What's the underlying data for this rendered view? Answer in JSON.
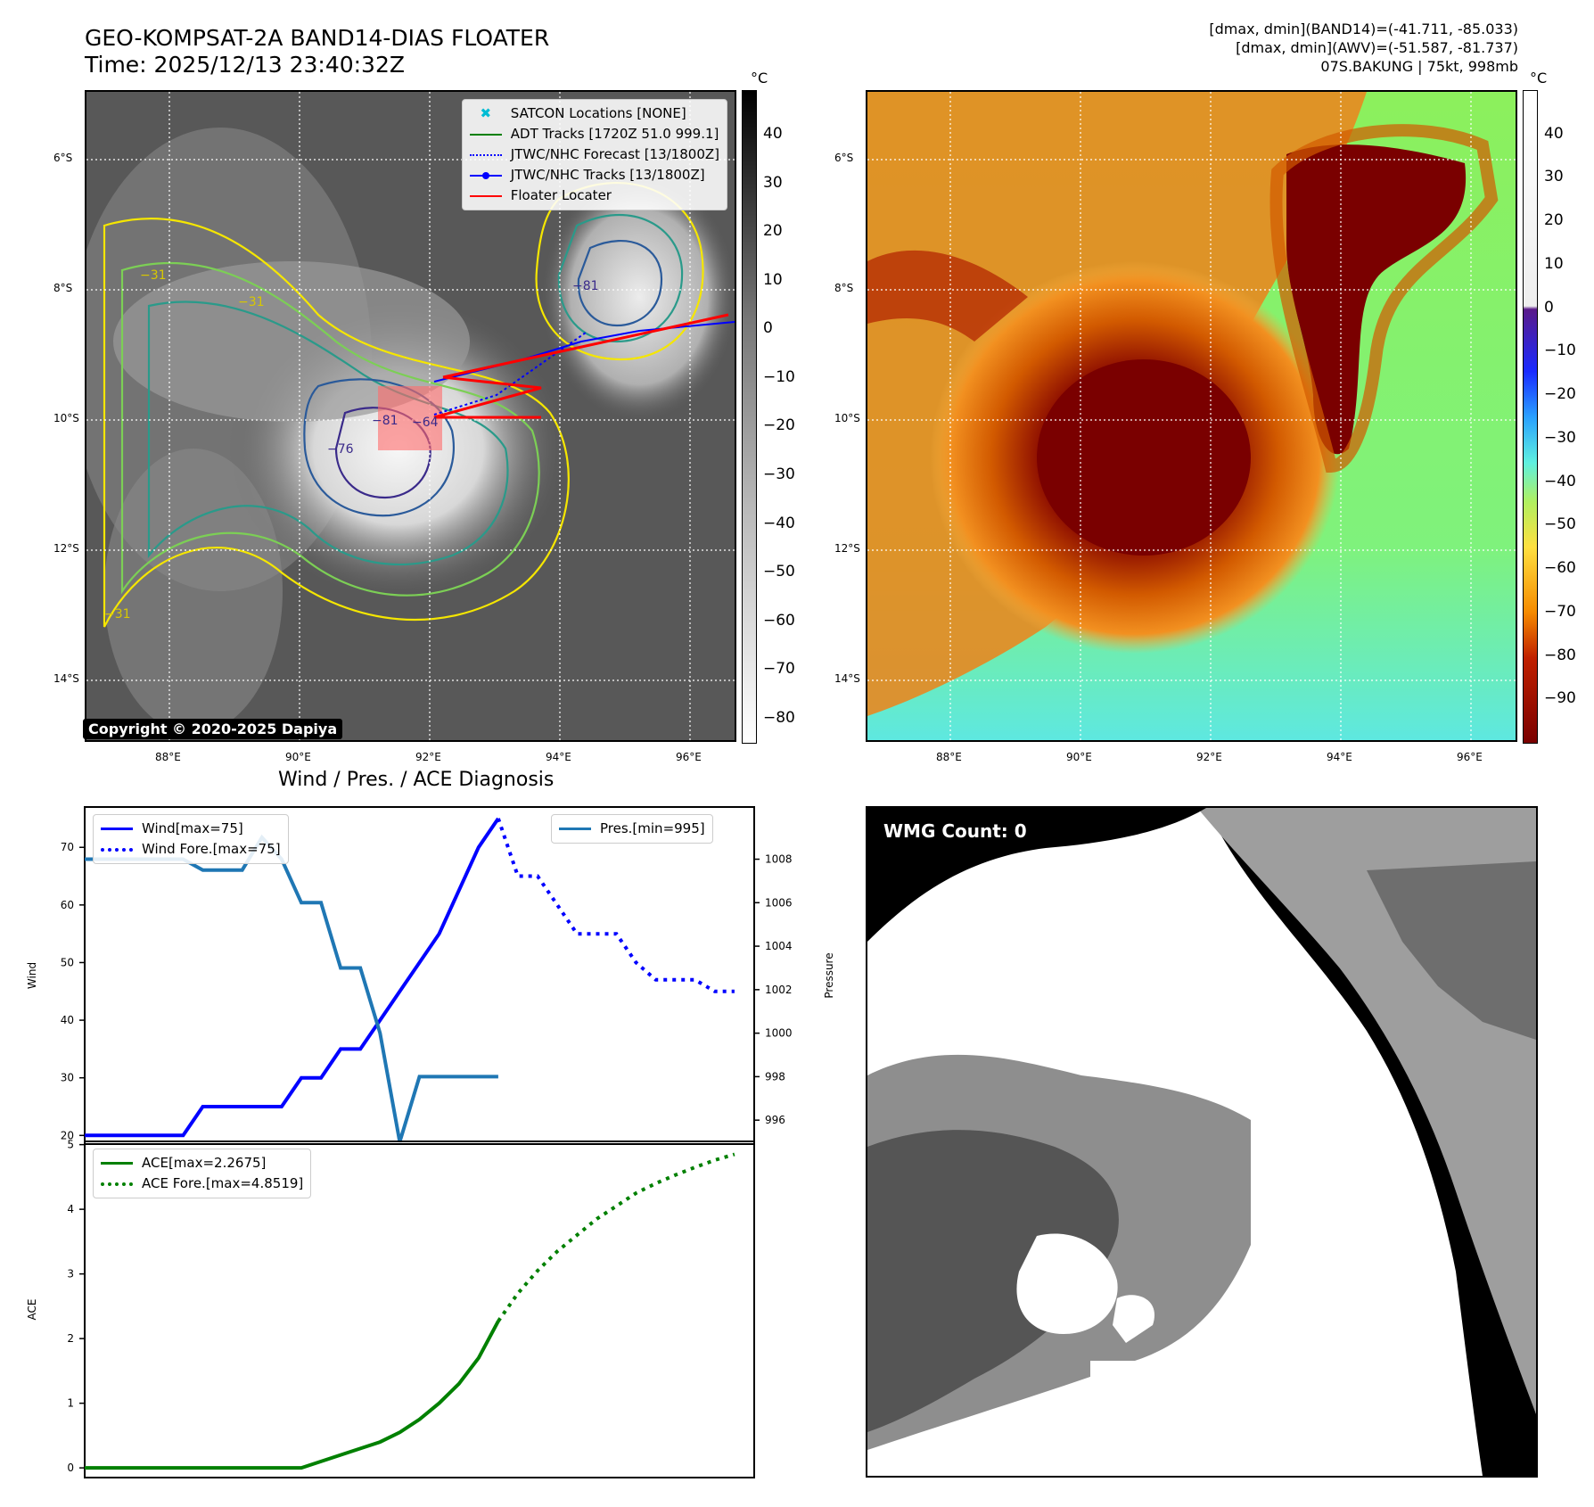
{
  "header": {
    "title_line1": "GEO-KOMPSAT-2A BAND14-DIAS FLOATER",
    "title_line2": "Time: 2025/12/13 23:40:32Z",
    "dmax_band14": "[dmax, dmin](BAND14)=(-41.711, -85.033)",
    "dmax_awv": "[dmax, dmin](AWV)=(-51.587, -81.737)",
    "storm_info": "07S.BAKUNG | 75kt, 998mb"
  },
  "map": {
    "lat_labels": [
      "6°S",
      "8°S",
      "10°S",
      "12°S",
      "14°S"
    ],
    "lon_labels": [
      "88°E",
      "90°E",
      "92°E",
      "94°E",
      "96°E"
    ],
    "unit": "°C",
    "contour_labels": [
      "−31",
      "−31",
      "−31",
      "−81",
      "−76",
      "−81",
      "−64"
    ],
    "copyright": "Copyright © 2020-2025 Dapiya",
    "legend": [
      {
        "label": "SATCON Locations [NONE]",
        "color": "#00bcd4",
        "style": "x-marker"
      },
      {
        "label": "ADT Tracks [1720Z 51.0 999.1]",
        "color": "#008000",
        "style": "solid"
      },
      {
        "label": "JTWC/NHC Forecast [13/1800Z]",
        "color": "#0000ff",
        "style": "dotted"
      },
      {
        "label": "JTWC/NHC Tracks [13/1800Z]",
        "color": "#0000ff",
        "style": "solid-dot"
      },
      {
        "label": "Floater Locater",
        "color": "#ff0000",
        "style": "solid"
      }
    ],
    "colorbar_left": {
      "ticks": [
        "40",
        "30",
        "20",
        "10",
        "0",
        "−10",
        "−20",
        "−30",
        "−40",
        "−50",
        "−60",
        "−70",
        "−80"
      ],
      "range": [
        -85,
        49
      ]
    },
    "colorbar_right": {
      "ticks": [
        "40",
        "30",
        "20",
        "10",
        "0",
        "−10",
        "−20",
        "−30",
        "−40",
        "−50",
        "−60",
        "−70",
        "−80",
        "−90"
      ],
      "range": [
        -100,
        50
      ]
    }
  },
  "diagnosis_title": "Wind / Pres. / ACE Diagnosis",
  "wmg_label": "WMG Count: 0",
  "chart_data": [
    {
      "type": "line",
      "title": "Wind / Pres. / ACE Diagnosis",
      "ylabel": "Wind",
      "ylim": [
        18.5,
        77
      ],
      "yticks": [
        "20",
        "30",
        "40",
        "50",
        "60",
        "70"
      ],
      "x_range": [
        0,
        34
      ],
      "series": [
        {
          "name": "Wind[max=75]",
          "color": "#0000ff",
          "style": "solid",
          "x": [
            0,
            5,
            6,
            10,
            11,
            12,
            13,
            14,
            16,
            18,
            20,
            21
          ],
          "values": [
            20,
            20,
            25,
            25,
            30,
            30,
            35,
            35,
            45,
            55,
            70,
            75
          ]
        },
        {
          "name": "Wind Fore.[max=75]",
          "color": "#0000ff",
          "style": "dotted",
          "x": [
            21,
            22,
            23,
            24,
            25,
            26,
            27,
            28,
            29,
            30,
            31,
            32,
            33
          ],
          "values": [
            75,
            65,
            65,
            60,
            55,
            55,
            55,
            50,
            47,
            47,
            47,
            45,
            45
          ]
        },
        {
          "name": "Pres.[min=995]",
          "color": "#1f77b4",
          "style": "solid",
          "axis": "right",
          "ylabel": "Pressure",
          "ylim": [
            994.9,
            1010.4
          ],
          "yticks": [
            "996",
            "998",
            "1000",
            "1002",
            "1004",
            "1006",
            "1008"
          ],
          "x": [
            0,
            5,
            6,
            8,
            9,
            10,
            11,
            12,
            13,
            14,
            15,
            16,
            17,
            18,
            19,
            20,
            21
          ],
          "values": [
            1008,
            1008,
            1007.5,
            1007.5,
            1009,
            1008,
            1006,
            1006,
            1003,
            1003,
            1000,
            995,
            998,
            998,
            998,
            998,
            998
          ]
        }
      ]
    },
    {
      "type": "line",
      "ylabel": "ACE",
      "ylim": [
        -0.15,
        5.05
      ],
      "yticks": [
        "0",
        "1",
        "2",
        "3",
        "4",
        "5"
      ],
      "x_range": [
        0,
        34
      ],
      "series": [
        {
          "name": "ACE[max=2.2675]",
          "color": "#008000",
          "style": "solid",
          "x": [
            0,
            10,
            11,
            12,
            13,
            14,
            15,
            16,
            17,
            18,
            19,
            20,
            21
          ],
          "values": [
            0,
            0,
            0,
            0.1,
            0.2,
            0.3,
            0.4,
            0.55,
            0.75,
            1.0,
            1.3,
            1.7,
            2.27
          ]
        },
        {
          "name": "ACE Fore.[max=4.8519]",
          "color": "#008000",
          "style": "dotted",
          "x": [
            21,
            22,
            23,
            24,
            25,
            26,
            27,
            28,
            29,
            30,
            31,
            32,
            33
          ],
          "values": [
            2.27,
            2.7,
            3.05,
            3.35,
            3.6,
            3.85,
            4.05,
            4.25,
            4.4,
            4.53,
            4.65,
            4.76,
            4.85
          ]
        }
      ]
    }
  ]
}
